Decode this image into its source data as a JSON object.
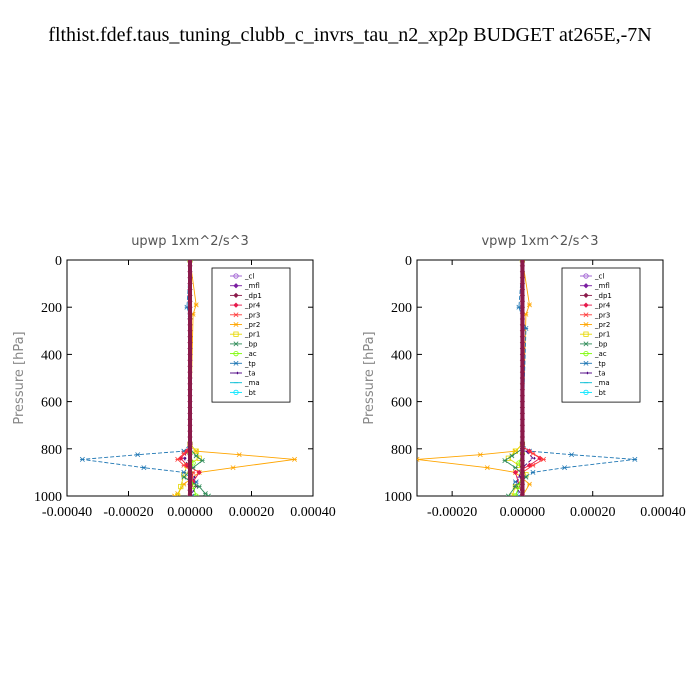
{
  "title": "flthist.fdef.taus_tuning_clubb_c_invrs_tau_n2_xp2p  BUDGET at265E,-7N",
  "legend": [
    {
      "name": "_cl",
      "color": "#9b59d0",
      "marker": "circle"
    },
    {
      "name": "_mfl",
      "color": "#7b1fa2",
      "marker": "diamond"
    },
    {
      "name": "_dp1",
      "color": "#8b1a4a",
      "marker": "diamond"
    },
    {
      "name": "_pr4",
      "color": "#e6194b",
      "marker": "diamond"
    },
    {
      "name": "_pr3",
      "color": "#ff3b3b",
      "marker": "star"
    },
    {
      "name": "_pr2",
      "color": "#ffa500",
      "marker": "star"
    },
    {
      "name": "_pr1",
      "color": "#e6d800",
      "marker": "square"
    },
    {
      "name": "_bp",
      "color": "#2e8b57",
      "marker": "cross"
    },
    {
      "name": "_ac",
      "color": "#7cfc00",
      "marker": "circle"
    },
    {
      "name": "_tp",
      "color": "#1f77b4",
      "marker": "cross"
    },
    {
      "name": "_ta",
      "color": "#4b0082",
      "marker": "arrow"
    },
    {
      "name": "_ma",
      "color": "#00bcd4",
      "marker": "dash"
    },
    {
      "name": "_bt",
      "color": "#00e5ff",
      "marker": "circle"
    }
  ],
  "chart_data": [
    {
      "type": "line",
      "title": "upwp   1xm^2/s^3",
      "ylabel": "Pressure [hPa]",
      "xlim": [
        -0.0004,
        0.0004
      ],
      "ylim": [
        1000,
        0
      ],
      "xticks": [
        "-0.00040",
        "-0.00020",
        "0.00000",
        "0.00020",
        "0.00040"
      ],
      "yticks": [
        "0",
        "200",
        "400",
        "600",
        "800",
        "1000"
      ],
      "series": [
        {
          "name": "_pr2",
          "points": [
            [
              0.0,
              0
            ],
            [
              2e-05,
              190
            ],
            [
              1e-05,
              230
            ],
            [
              0.0,
              780
            ],
            [
              2e-05,
              810
            ],
            [
              0.00016,
              825
            ],
            [
              0.00034,
              845
            ],
            [
              0.00014,
              880
            ],
            [
              3e-05,
              900
            ],
            [
              -2e-05,
              950
            ],
            [
              -4e-05,
              990
            ],
            [
              -5e-05,
              1000
            ]
          ]
        },
        {
          "name": "_pr1",
          "points": [
            [
              0.0,
              0
            ],
            [
              0.0,
              780
            ],
            [
              2e-05,
              810
            ],
            [
              3e-05,
              840
            ],
            [
              -1e-05,
              870
            ],
            [
              -2e-05,
              910
            ],
            [
              -3e-05,
              960
            ],
            [
              -4e-05,
              1000
            ]
          ]
        },
        {
          "name": "_tp",
          "points": [
            [
              0.0,
              0
            ],
            [
              -1e-05,
              200
            ],
            [
              0.0,
              240
            ],
            [
              0.0,
              780
            ],
            [
              -2e-05,
              810
            ],
            [
              -0.00017,
              825
            ],
            [
              -0.00035,
              845
            ],
            [
              -0.00015,
              880
            ],
            [
              -2e-05,
              900
            ],
            [
              2e-05,
              940
            ],
            [
              1e-05,
              1000
            ]
          ]
        },
        {
          "name": "_ta",
          "points": [
            [
              0.0,
              0
            ],
            [
              0.0,
              780
            ],
            [
              -1e-05,
              810
            ],
            [
              -2e-05,
              840
            ],
            [
              0.0,
              880
            ],
            [
              1e-05,
              920
            ],
            [
              2e-05,
              960
            ],
            [
              0.0,
              1000
            ]
          ]
        },
        {
          "name": "_pr4",
          "points": [
            [
              0.0,
              0
            ],
            [
              0.0,
              790
            ],
            [
              -1e-05,
              810
            ],
            [
              -3e-05,
              840
            ],
            [
              -1e-05,
              870
            ],
            [
              3e-05,
              900
            ],
            [
              1e-05,
              940
            ],
            [
              0.0,
              1000
            ]
          ]
        },
        {
          "name": "_pr3",
          "points": [
            [
              0.0,
              0
            ],
            [
              0.0,
              790
            ],
            [
              -2e-05,
              820
            ],
            [
              -4e-05,
              845
            ],
            [
              -2e-05,
              870
            ],
            [
              1e-05,
              900
            ],
            [
              0.0,
              1000
            ]
          ]
        },
        {
          "name": "_bp",
          "points": [
            [
              0.0,
              0
            ],
            [
              0.0,
              800
            ],
            [
              2e-05,
              830
            ],
            [
              4e-05,
              850
            ],
            [
              1e-05,
              880
            ],
            [
              -2e-05,
              920
            ],
            [
              3e-05,
              960
            ],
            [
              5e-05,
              990
            ],
            [
              6e-05,
              1000
            ]
          ]
        },
        {
          "name": "_ac",
          "points": [
            [
              0.0,
              0
            ],
            [
              0.0,
              820
            ],
            [
              1e-05,
              860
            ],
            [
              0.0,
              900
            ],
            [
              1e-05,
              960
            ],
            [
              2e-05,
              1000
            ]
          ]
        },
        {
          "name": "_mfl",
          "points": [
            [
              0.0,
              0
            ],
            [
              0.0,
              1000
            ]
          ]
        },
        {
          "name": "_dp1",
          "points": [
            [
              0.0,
              0
            ],
            [
              0.0,
              1000
            ]
          ]
        }
      ]
    },
    {
      "type": "line",
      "title": "vpwp   1xm^2/s^3",
      "ylabel": "Pressure [hPa]",
      "xlim": [
        -0.0003,
        0.0004
      ],
      "ylim": [
        1000,
        0
      ],
      "xticks": [
        "-0.00020",
        "0.00000",
        "0.00020",
        "0.00040"
      ],
      "yticks": [
        "0",
        "200",
        "400",
        "600",
        "800",
        "1000"
      ],
      "series": [
        {
          "name": "_pr2",
          "points": [
            [
              0.0,
              0
            ],
            [
              2e-05,
              190
            ],
            [
              1e-05,
              230
            ],
            [
              0.0,
              780
            ],
            [
              -2e-05,
              810
            ],
            [
              -0.00012,
              825
            ],
            [
              -0.0003,
              845
            ],
            [
              -0.0001,
              880
            ],
            [
              -2e-05,
              900
            ],
            [
              2e-05,
              950
            ],
            [
              0.0,
              1000
            ]
          ]
        },
        {
          "name": "_pr1",
          "points": [
            [
              0.0,
              0
            ],
            [
              0.0,
              780
            ],
            [
              -2e-05,
              810
            ],
            [
              -4e-05,
              840
            ],
            [
              -1e-05,
              870
            ],
            [
              1e-05,
              910
            ],
            [
              -2e-05,
              960
            ],
            [
              -3e-05,
              1000
            ]
          ]
        },
        {
          "name": "_tp",
          "points": [
            [
              0.0,
              0
            ],
            [
              -1e-05,
              200
            ],
            [
              1e-05,
              290
            ],
            [
              0.0,
              780
            ],
            [
              2e-05,
              810
            ],
            [
              0.00014,
              825
            ],
            [
              0.00032,
              845
            ],
            [
              0.00012,
              880
            ],
            [
              3e-05,
              900
            ],
            [
              -2e-05,
              940
            ],
            [
              -1e-05,
              1000
            ]
          ]
        },
        {
          "name": "_ta",
          "points": [
            [
              0.0,
              0
            ],
            [
              0.0,
              780
            ],
            [
              1e-05,
              810
            ],
            [
              3e-05,
              840
            ],
            [
              0.0,
              880
            ],
            [
              -1e-05,
              920
            ],
            [
              -2e-05,
              960
            ],
            [
              0.0,
              1000
            ]
          ]
        },
        {
          "name": "_pr4",
          "points": [
            [
              0.0,
              0
            ],
            [
              0.0,
              790
            ],
            [
              2e-05,
              810
            ],
            [
              5e-05,
              840
            ],
            [
              2e-05,
              870
            ],
            [
              -2e-05,
              900
            ],
            [
              0.0,
              1000
            ]
          ]
        },
        {
          "name": "_pr3",
          "points": [
            [
              0.0,
              0
            ],
            [
              0.0,
              790
            ],
            [
              3e-05,
              820
            ],
            [
              6e-05,
              845
            ],
            [
              3e-05,
              870
            ],
            [
              0.0,
              900
            ],
            [
              0.0,
              1000
            ]
          ]
        },
        {
          "name": "_bp",
          "points": [
            [
              0.0,
              0
            ],
            [
              0.0,
              800
            ],
            [
              -3e-05,
              830
            ],
            [
              -5e-05,
              850
            ],
            [
              -2e-05,
              880
            ],
            [
              1e-05,
              920
            ],
            [
              -2e-05,
              960
            ],
            [
              -4e-05,
              1000
            ]
          ]
        },
        {
          "name": "_ac",
          "points": [
            [
              0.0,
              0
            ],
            [
              0.0,
              820
            ],
            [
              -1e-05,
              860
            ],
            [
              0.0,
              900
            ],
            [
              -1e-05,
              960
            ],
            [
              -2e-05,
              1000
            ]
          ]
        },
        {
          "name": "_mfl",
          "points": [
            [
              0.0,
              0
            ],
            [
              0.0,
              1000
            ]
          ]
        },
        {
          "name": "_dp1",
          "points": [
            [
              0.0,
              0
            ],
            [
              0.0,
              1000
            ]
          ]
        }
      ]
    }
  ]
}
